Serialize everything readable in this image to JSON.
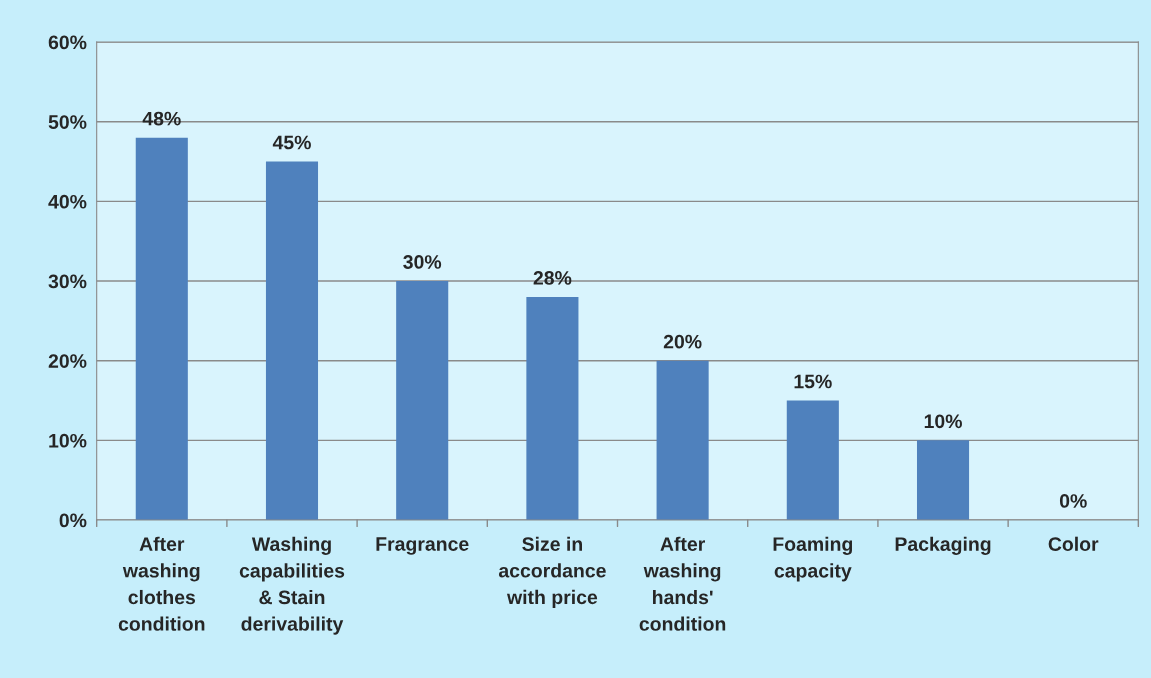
{
  "chart_data": {
    "type": "bar",
    "categories": [
      "After\nwashing\nclothes\ncondition",
      "Washing\ncapabilities\n& Stain\nderivability",
      "Fragrance",
      "Size in\naccordance\nwith price",
      "After\nwashing\nhands'\ncondition",
      "Foaming\ncapacity",
      "Packaging",
      "Color"
    ],
    "values": [
      48,
      45,
      30,
      28,
      20,
      15,
      10,
      0
    ],
    "value_labels": [
      "48%",
      "45%",
      "30%",
      "28%",
      "20%",
      "15%",
      "10%",
      "0%"
    ],
    "color": "#4f81bd",
    "ylim": [
      0,
      60
    ],
    "yticks": [
      {
        "value": 0,
        "label": "0%"
      },
      {
        "value": 10,
        "label": "10%"
      },
      {
        "value": 20,
        "label": "20%"
      },
      {
        "value": 30,
        "label": "30%"
      },
      {
        "value": 40,
        "label": "40%"
      },
      {
        "value": 50,
        "label": "50%"
      },
      {
        "value": 60,
        "label": "60%"
      }
    ],
    "grid": "y",
    "legend": false
  }
}
